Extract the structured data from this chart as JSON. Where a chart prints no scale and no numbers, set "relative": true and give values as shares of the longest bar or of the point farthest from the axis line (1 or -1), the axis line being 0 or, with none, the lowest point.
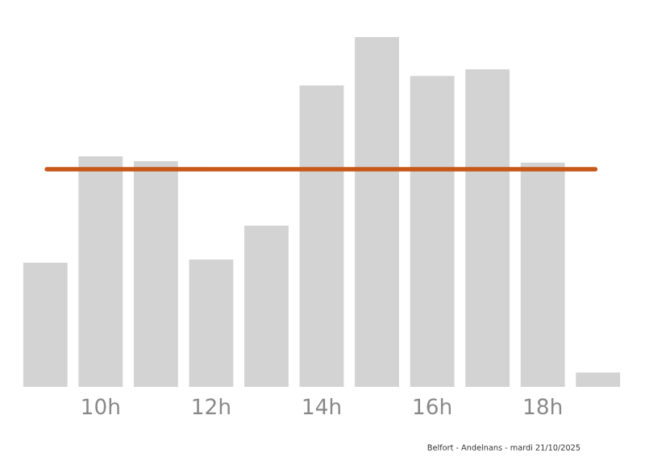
{
  "chart_data": {
    "type": "bar",
    "relative": true,
    "categories": [
      null,
      "10h",
      null,
      "12h",
      null,
      "14h",
      null,
      "16h",
      null,
      "18h",
      null
    ],
    "values": [
      0.355,
      0.659,
      0.645,
      0.364,
      0.461,
      0.862,
      1,
      0.889,
      0.908,
      0.641,
      0.041
    ],
    "color": "#d3d3d3",
    "ref_lines": [
      {
        "axis": "y",
        "value": 0.622,
        "color": "#c8581a"
      }
    ],
    "grid": false,
    "legend": false,
    "annotations": [
      "Belfort - Andelnans - mardi 21/10/2025"
    ]
  }
}
